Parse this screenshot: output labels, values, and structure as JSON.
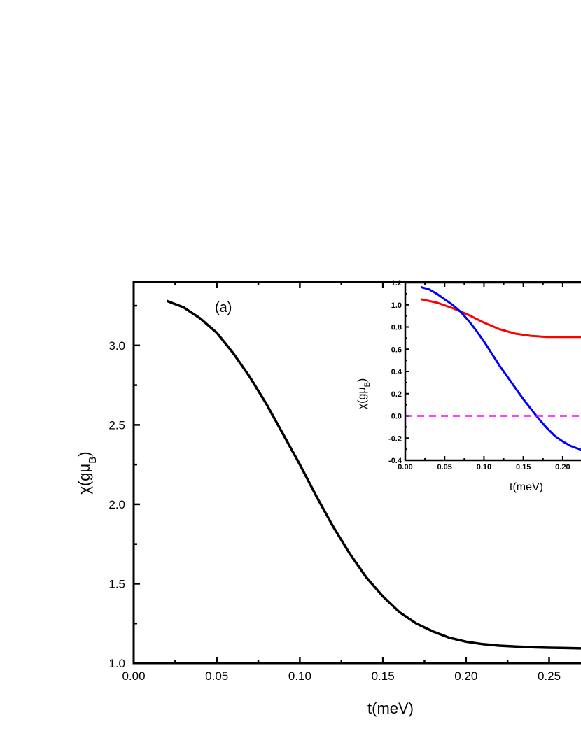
{
  "chart_data": [
    {
      "type": "line",
      "panel_label": "(a)",
      "xlabel": "t(meV)",
      "ylabel_main": "χ(gμ",
      "ylabel_sub": "B",
      "ylabel_close": ")",
      "xlim": [
        0.0,
        0.27
      ],
      "ylim": [
        1.0,
        3.4
      ],
      "xticks": [
        0.0,
        0.05,
        0.1,
        0.15,
        0.2,
        0.25
      ],
      "xtick_labels": [
        "0.00",
        "0.05",
        "0.10",
        "0.15",
        "0.20",
        "0.25"
      ],
      "yticks": [
        1.0,
        1.5,
        2.0,
        2.5,
        3.0
      ],
      "ytick_labels": [
        "1.0",
        "1.5",
        "2.0",
        "2.5",
        "3.0"
      ],
      "series": [
        {
          "color": "#000000",
          "x": [
            0.02,
            0.03,
            0.04,
            0.05,
            0.06,
            0.07,
            0.08,
            0.09,
            0.1,
            0.11,
            0.12,
            0.13,
            0.14,
            0.15,
            0.16,
            0.17,
            0.18,
            0.19,
            0.2,
            0.21,
            0.22,
            0.23,
            0.24,
            0.25,
            0.26,
            0.27
          ],
          "y": [
            3.28,
            3.24,
            3.17,
            3.08,
            2.95,
            2.8,
            2.63,
            2.44,
            2.25,
            2.05,
            1.86,
            1.69,
            1.54,
            1.42,
            1.32,
            1.25,
            1.2,
            1.16,
            1.135,
            1.12,
            1.11,
            1.105,
            1.1,
            1.097,
            1.095,
            1.093
          ]
        }
      ]
    },
    {
      "type": "line",
      "role": "inset",
      "xlabel": "t(meV)",
      "ylabel_main": "χ(gμ",
      "ylabel_sub": "B",
      "ylabel_close": ")",
      "xlim": [
        0.0,
        0.225
      ],
      "ylim": [
        -0.4,
        1.2
      ],
      "xticks": [
        0.0,
        0.05,
        0.1,
        0.15,
        0.2
      ],
      "xtick_labels": [
        "0.00",
        "0.05",
        "0.10",
        "0.15",
        "0.20"
      ],
      "yticks": [
        -0.4,
        -0.2,
        0.0,
        0.2,
        0.4,
        0.6,
        0.8,
        1.0,
        1.2
      ],
      "ytick_labels": [
        "-0.4",
        "-0.2",
        "0.0",
        "0.2",
        "0.4",
        "0.6",
        "0.8",
        "1.0",
        "1.2"
      ],
      "series": [
        {
          "color": "#ff0000",
          "x": [
            0.02,
            0.04,
            0.06,
            0.08,
            0.1,
            0.12,
            0.14,
            0.16,
            0.18,
            0.2,
            0.225
          ],
          "y": [
            1.05,
            1.02,
            0.97,
            0.91,
            0.84,
            0.78,
            0.74,
            0.72,
            0.71,
            0.71,
            0.71
          ]
        },
        {
          "color": "#0000ff",
          "x": [
            0.02,
            0.03,
            0.04,
            0.05,
            0.06,
            0.07,
            0.08,
            0.09,
            0.1,
            0.11,
            0.12,
            0.13,
            0.14,
            0.15,
            0.16,
            0.17,
            0.18,
            0.19,
            0.2,
            0.21,
            0.225
          ],
          "y": [
            1.16,
            1.14,
            1.1,
            1.05,
            1.0,
            0.94,
            0.86,
            0.77,
            0.67,
            0.56,
            0.45,
            0.35,
            0.25,
            0.15,
            0.06,
            -0.03,
            -0.11,
            -0.18,
            -0.23,
            -0.27,
            -0.31
          ]
        },
        {
          "color": "#ff00ff",
          "dashed": true,
          "x": [
            0.0,
            0.225
          ],
          "y": [
            0.0,
            0.0
          ]
        }
      ]
    }
  ]
}
